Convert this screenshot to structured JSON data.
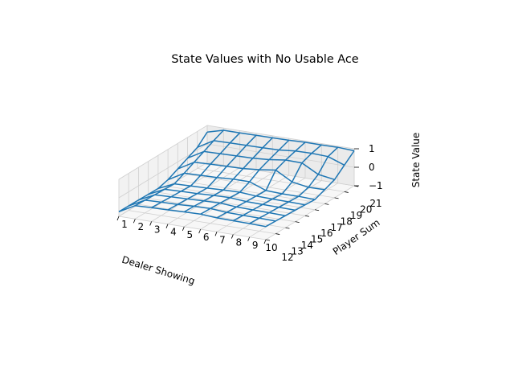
{
  "chart_data": {
    "type": "surface",
    "title": "State Values with No Usable Ace",
    "xlabel": "Dealer Showing",
    "ylabel": "Player Sum",
    "zlabel": "State Value",
    "x_ticks": [
      "1",
      "2",
      "3",
      "4",
      "5",
      "6",
      "7",
      "8",
      "9",
      "10"
    ],
    "y_ticks": [
      "12",
      "13",
      "14",
      "15",
      "16",
      "17",
      "18",
      "19",
      "20",
      "21"
    ],
    "z_ticks": [
      "−1",
      "0",
      "1"
    ],
    "zlim": [
      -1,
      1
    ],
    "grid": true,
    "series_color": "#1f77b4",
    "x": [
      1,
      2,
      3,
      4,
      5,
      6,
      7,
      8,
      9,
      10
    ],
    "y": [
      12,
      13,
      14,
      15,
      16,
      17,
      18,
      19,
      20,
      21
    ],
    "z": [
      [
        -0.75,
        -0.28,
        -0.25,
        -0.23,
        -0.2,
        -0.18,
        -0.24,
        -0.26,
        -0.27,
        -0.29
      ],
      [
        -0.76,
        -0.31,
        -0.28,
        -0.26,
        -0.22,
        -0.2,
        -0.27,
        -0.29,
        -0.3,
        -0.32
      ],
      [
        -0.77,
        -0.34,
        -0.31,
        -0.29,
        -0.25,
        -0.23,
        -0.3,
        -0.32,
        -0.33,
        -0.35
      ],
      [
        -0.78,
        -0.37,
        -0.34,
        -0.32,
        -0.28,
        -0.26,
        -0.33,
        -0.35,
        -0.36,
        -0.38
      ],
      [
        -0.79,
        -0.4,
        -0.37,
        -0.35,
        -0.31,
        -0.29,
        -0.36,
        -0.38,
        -0.39,
        -0.41
      ],
      [
        -0.64,
        -0.15,
        -0.12,
        -0.1,
        -0.05,
        -0.05,
        -0.38,
        -0.42,
        -0.42,
        -0.45
      ],
      [
        -0.38,
        0.12,
        0.16,
        0.18,
        0.2,
        0.28,
        0.4,
        -0.1,
        -0.25,
        -0.24
      ],
      [
        -0.12,
        0.38,
        0.4,
        0.42,
        0.44,
        0.5,
        0.62,
        0.6,
        0.12,
        -0.02
      ],
      [
        0.14,
        0.64,
        0.66,
        0.67,
        0.68,
        0.7,
        0.78,
        0.8,
        0.76,
        0.44
      ],
      [
        0.64,
        0.88,
        0.88,
        0.89,
        0.89,
        0.9,
        0.93,
        0.93,
        0.94,
        0.89
      ]
    ]
  }
}
